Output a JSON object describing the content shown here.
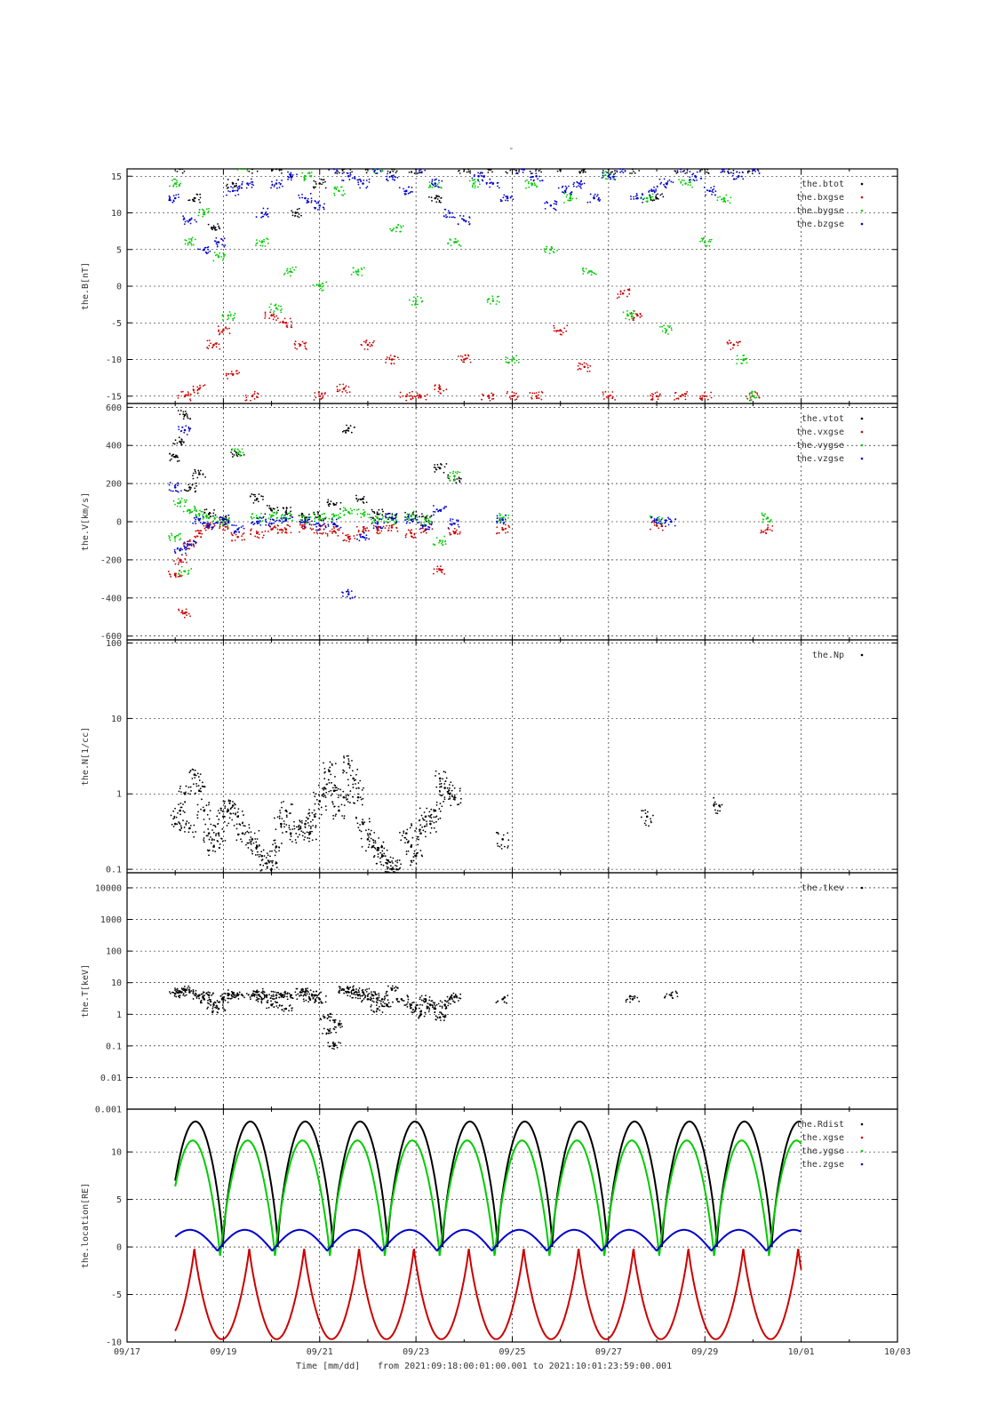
{
  "figure": {
    "top_title": "-",
    "time_label": "Time [mm/dd]",
    "range_text": "from 2021:09:18:00:01:00.001  to  2021:10:01:23:59:00.001",
    "x_ticks": [
      "09/17",
      "09/19",
      "09/21",
      "09/23",
      "09/25",
      "09/27",
      "09/29",
      "10/01",
      "10/03"
    ],
    "x_range_days": [
      0,
      16
    ],
    "colors": {
      "black": "#000000",
      "red": "#cc0000",
      "green": "#00cc00",
      "blue": "#0000cc"
    }
  },
  "chart_data": [
    {
      "type": "scatter",
      "ylabel": "the.B[nT]",
      "ylim": [
        -16,
        16
      ],
      "y_ticks": [
        "15",
        "10",
        "5",
        "0",
        "-5",
        "-10",
        "-15"
      ],
      "legend": [
        "the.btot",
        "the.bxgse",
        "the.bygse",
        "the.bzgse"
      ],
      "legend_placement": "top-right",
      "series": [
        {
          "name": "the.btot",
          "color": "black",
          "x": [
            1.1,
            1.4,
            1.8,
            2.2,
            2.6,
            3.1,
            3.5,
            4.0,
            4.5,
            5.0,
            5.5,
            6.0,
            6.4,
            7.0,
            7.5,
            8.0,
            8.5,
            9.0,
            9.5,
            10.0,
            10.5,
            11.0,
            11.5,
            12.0,
            12.5,
            13.0
          ],
          "y": [
            16,
            12,
            8,
            14,
            16,
            16,
            10,
            14,
            16,
            16,
            16,
            16,
            12,
            16,
            16,
            16,
            16,
            16,
            16,
            16,
            16,
            12,
            16,
            16,
            16,
            16
          ]
        },
        {
          "name": "the.bxgse",
          "color": "red",
          "x": [
            1.2,
            1.5,
            1.8,
            2.0,
            2.2,
            2.6,
            3.0,
            3.3,
            3.6,
            4.0,
            4.5,
            5.0,
            5.5,
            5.8,
            6.1,
            6.5,
            7.0,
            7.5,
            8.0,
            8.5,
            9.0,
            9.5,
            10.0,
            10.3,
            10.6,
            11.0,
            11.5,
            12.0,
            12.6,
            13.0
          ],
          "y": [
            -15,
            -14,
            -8,
            -6,
            -12,
            -15,
            -4,
            -5,
            -8,
            -15,
            -14,
            -8,
            -10,
            -15,
            -15,
            -14,
            -10,
            -15,
            -15,
            -15,
            -6,
            -11,
            -15,
            -1,
            -4,
            -15,
            -15,
            -15,
            -8,
            -15
          ]
        },
        {
          "name": "the.bygse",
          "color": "green",
          "x": [
            1.0,
            1.3,
            1.6,
            1.9,
            2.1,
            2.4,
            2.8,
            3.1,
            3.4,
            3.7,
            4.0,
            4.4,
            4.8,
            5.2,
            5.6,
            6.0,
            6.4,
            6.8,
            7.2,
            7.6,
            8.0,
            8.4,
            8.8,
            9.2,
            9.6,
            10.0,
            10.4,
            10.8,
            11.2,
            11.6,
            12.0,
            12.4,
            12.8,
            13.0
          ],
          "y": [
            14,
            6,
            10,
            4,
            -4,
            16,
            6,
            -3,
            2,
            15,
            0,
            13,
            2,
            16,
            8,
            -2,
            14,
            6,
            14,
            -2,
            -10,
            14,
            5,
            12,
            2,
            15,
            -4,
            12,
            -6,
            14,
            6,
            12,
            -10,
            -15
          ]
        },
        {
          "name": "the.bzgse",
          "color": "blue",
          "x": [
            1.0,
            1.3,
            1.6,
            1.9,
            2.2,
            2.5,
            2.8,
            3.1,
            3.4,
            3.7,
            4.0,
            4.3,
            4.6,
            4.9,
            5.2,
            5.5,
            5.8,
            6.1,
            6.4,
            6.7,
            7.0,
            7.3,
            7.6,
            7.9,
            8.2,
            8.5,
            8.8,
            9.1,
            9.4,
            9.7,
            10.0,
            10.3,
            10.6,
            10.9,
            11.2,
            11.5,
            11.8,
            12.1,
            12.4,
            12.7,
            13.0
          ],
          "y": [
            12,
            9,
            5,
            6,
            13,
            14,
            10,
            14,
            15,
            12,
            11,
            16,
            15,
            14,
            16,
            15,
            13,
            16,
            14,
            10,
            9,
            15,
            14,
            12,
            16,
            15,
            11,
            13,
            14,
            12,
            15,
            16,
            12,
            13,
            14,
            16,
            15,
            13,
            16,
            15,
            16
          ]
        }
      ]
    },
    {
      "type": "scatter",
      "ylabel": "the.V[km/s]",
      "ylim": [
        -620,
        620
      ],
      "y_ticks": [
        "600",
        "400",
        "200",
        "0",
        "-200",
        "-400",
        "-600"
      ],
      "legend": [
        "the.vtot",
        "the.vxgse",
        "the.vygse",
        "the.vzgse"
      ],
      "legend_placement": "top-right",
      "series": [
        {
          "name": "the.vtot",
          "color": "black",
          "x": [
            1.0,
            1.1,
            1.2,
            1.3,
            1.5,
            1.7,
            2.0,
            2.3,
            2.7,
            3.0,
            3.3,
            3.7,
            4.0,
            4.3,
            4.6,
            4.9,
            5.2,
            5.5,
            5.9,
            6.2,
            6.5,
            6.8
          ],
          "y": [
            340,
            420,
            560,
            180,
            250,
            40,
            20,
            360,
            120,
            60,
            50,
            20,
            30,
            90,
            490,
            120,
            40,
            20,
            30,
            20,
            280,
            220
          ]
        },
        {
          "name": "the.vxgse",
          "color": "red",
          "x": [
            1.0,
            1.1,
            1.2,
            1.3,
            1.5,
            1.7,
            2.0,
            2.3,
            2.7,
            3.0,
            3.3,
            3.7,
            4.0,
            4.3,
            4.6,
            4.9,
            5.2,
            5.5,
            5.9,
            6.2,
            6.5,
            6.8,
            7.8,
            11.0,
            13.3
          ],
          "y": [
            -280,
            -200,
            -480,
            -120,
            -60,
            -30,
            -20,
            -80,
            -60,
            -40,
            -40,
            -30,
            -40,
            -50,
            -80,
            -50,
            -40,
            -30,
            -60,
            -40,
            -250,
            -60,
            -40,
            -20,
            -40
          ]
        },
        {
          "name": "the.vygse",
          "color": "green",
          "x": [
            1.0,
            1.1,
            1.2,
            1.3,
            1.5,
            1.7,
            2.0,
            2.3,
            2.7,
            3.0,
            3.3,
            3.7,
            4.0,
            4.3,
            4.6,
            4.9,
            5.2,
            5.5,
            5.9,
            6.2,
            6.5,
            6.8,
            7.8,
            11.0,
            13.3
          ],
          "y": [
            -80,
            100,
            -260,
            60,
            40,
            20,
            0,
            360,
            20,
            30,
            20,
            10,
            20,
            30,
            50,
            40,
            20,
            10,
            30,
            10,
            -100,
            240,
            20,
            10,
            20
          ]
        },
        {
          "name": "the.vzgse",
          "color": "blue",
          "x": [
            1.0,
            1.1,
            1.2,
            1.3,
            1.5,
            1.7,
            2.0,
            2.3,
            2.7,
            3.0,
            3.3,
            3.7,
            4.0,
            4.3,
            4.6,
            4.9,
            5.2,
            5.5,
            5.9,
            6.2,
            6.5,
            6.8,
            7.8,
            11.0,
            11.3
          ],
          "y": [
            180,
            -150,
            480,
            -120,
            10,
            -20,
            10,
            -40,
            0,
            -10,
            10,
            0,
            -20,
            -10,
            -380,
            -80,
            -10,
            20,
            10,
            -20,
            60,
            -10,
            10,
            10,
            0
          ]
        }
      ]
    },
    {
      "type": "scatter",
      "ylabel": "the.N[1/cc]",
      "y_scale": "log",
      "ylim": [
        0.09,
        110
      ],
      "y_ticks": [
        "100",
        "10",
        "1",
        "0.1"
      ],
      "legend": [
        "the.Np"
      ],
      "legend_placement": "top-right",
      "series": [
        {
          "name": "the.Np",
          "color": "black",
          "x": [
            1.0,
            1.1,
            1.2,
            1.3,
            1.4,
            1.5,
            1.6,
            1.7,
            1.8,
            1.9,
            2.0,
            2.1,
            2.2,
            2.3,
            2.4,
            2.6,
            2.7,
            2.8,
            2.9,
            3.0,
            3.1,
            3.2,
            3.3,
            3.4,
            3.6,
            3.7,
            3.8,
            3.9,
            4.0,
            4.1,
            4.2,
            4.3,
            4.4,
            4.5,
            4.6,
            4.7,
            4.8,
            4.9,
            5.0,
            5.1,
            5.2,
            5.3,
            5.4,
            5.5,
            5.6,
            5.8,
            5.9,
            6.0,
            6.1,
            6.2,
            6.3,
            6.4,
            6.5,
            6.6,
            6.7,
            6.8,
            7.8,
            10.8,
            12.3
          ],
          "y": [
            0.4,
            0.6,
            1.0,
            0.35,
            1.8,
            1.1,
            0.6,
            0.3,
            0.2,
            0.3,
            0.5,
            0.6,
            0.7,
            0.5,
            0.3,
            0.25,
            0.2,
            0.15,
            0.12,
            0.1,
            0.2,
            0.4,
            0.6,
            0.3,
            0.35,
            0.4,
            0.3,
            0.5,
            0.8,
            1.2,
            2.0,
            1.1,
            0.6,
            0.9,
            2.5,
            1.6,
            0.9,
            0.4,
            0.25,
            0.2,
            0.18,
            0.15,
            0.12,
            0.1,
            0.1,
            0.3,
            0.2,
            0.15,
            0.3,
            0.5,
            0.4,
            0.6,
            1.6,
            1.2,
            1.0,
            0.9,
            0.25,
            0.5,
            0.7
          ]
        }
      ]
    },
    {
      "type": "scatter",
      "ylabel": "the.T[keV]",
      "y_scale": "log",
      "ylim": [
        0.001,
        30000
      ],
      "y_ticks": [
        "10000",
        "1000",
        "100",
        "10",
        "1",
        "0.1",
        "0.01",
        "0.001"
      ],
      "legend": [
        "the.tkev"
      ],
      "legend_placement": "top-right",
      "series": [
        {
          "name": "the.tkev",
          "color": "black",
          "x": [
            1.0,
            1.1,
            1.2,
            1.3,
            1.5,
            1.6,
            1.7,
            1.8,
            1.9,
            2.0,
            2.1,
            2.2,
            2.3,
            2.6,
            2.7,
            2.8,
            2.9,
            3.0,
            3.1,
            3.2,
            3.3,
            3.4,
            3.6,
            3.7,
            3.8,
            3.9,
            4.0,
            4.1,
            4.2,
            4.3,
            4.4,
            4.5,
            4.6,
            4.7,
            4.8,
            4.9,
            5.0,
            5.1,
            5.2,
            5.3,
            5.4,
            5.5,
            5.7,
            5.9,
            6.0,
            6.1,
            6.2,
            6.3,
            6.4,
            6.5,
            6.6,
            6.7,
            6.8,
            7.8,
            10.5,
            11.3
          ],
          "y": [
            4.5,
            5,
            6,
            5,
            4,
            3,
            4,
            2,
            1.5,
            3,
            4,
            4.5,
            4,
            4,
            5,
            3,
            4,
            2,
            4,
            4,
            1.5,
            4,
            5,
            5,
            3,
            4,
            3,
            0.8,
            0.3,
            0.1,
            0.5,
            6,
            5,
            6,
            4,
            5,
            3,
            4,
            1.5,
            3,
            2,
            6,
            3,
            2,
            1.5,
            1,
            3,
            2,
            1.5,
            0.8,
            2,
            3,
            3.5,
            3,
            3,
            4
          ]
        }
      ]
    },
    {
      "type": "line",
      "ylabel": "the.location[RE]",
      "ylim": [
        -10,
        14.5
      ],
      "y_ticks": [
        "10",
        "5",
        "0",
        "-5",
        "-10"
      ],
      "legend": [
        "the.Rdist",
        "the.xgse",
        "the.ygse",
        "the.zgse"
      ],
      "legend_placement": "top-right",
      "orbit_period_days": 1.14,
      "orbit_start_day": 1.0,
      "orbit_end_day": 14.0,
      "series": [
        {
          "name": "the.Rdist",
          "color": "black",
          "amplitude_range": [
            0,
            13.2
          ]
        },
        {
          "name": "the.xgse",
          "color": "red",
          "amplitude_range": [
            -9.7,
            0
          ]
        },
        {
          "name": "the.ygse",
          "color": "green",
          "amplitude_range": [
            -1.2,
            11.2
          ]
        },
        {
          "name": "the.zgse",
          "color": "blue",
          "amplitude_range": [
            -0.4,
            1.8
          ]
        }
      ]
    }
  ]
}
